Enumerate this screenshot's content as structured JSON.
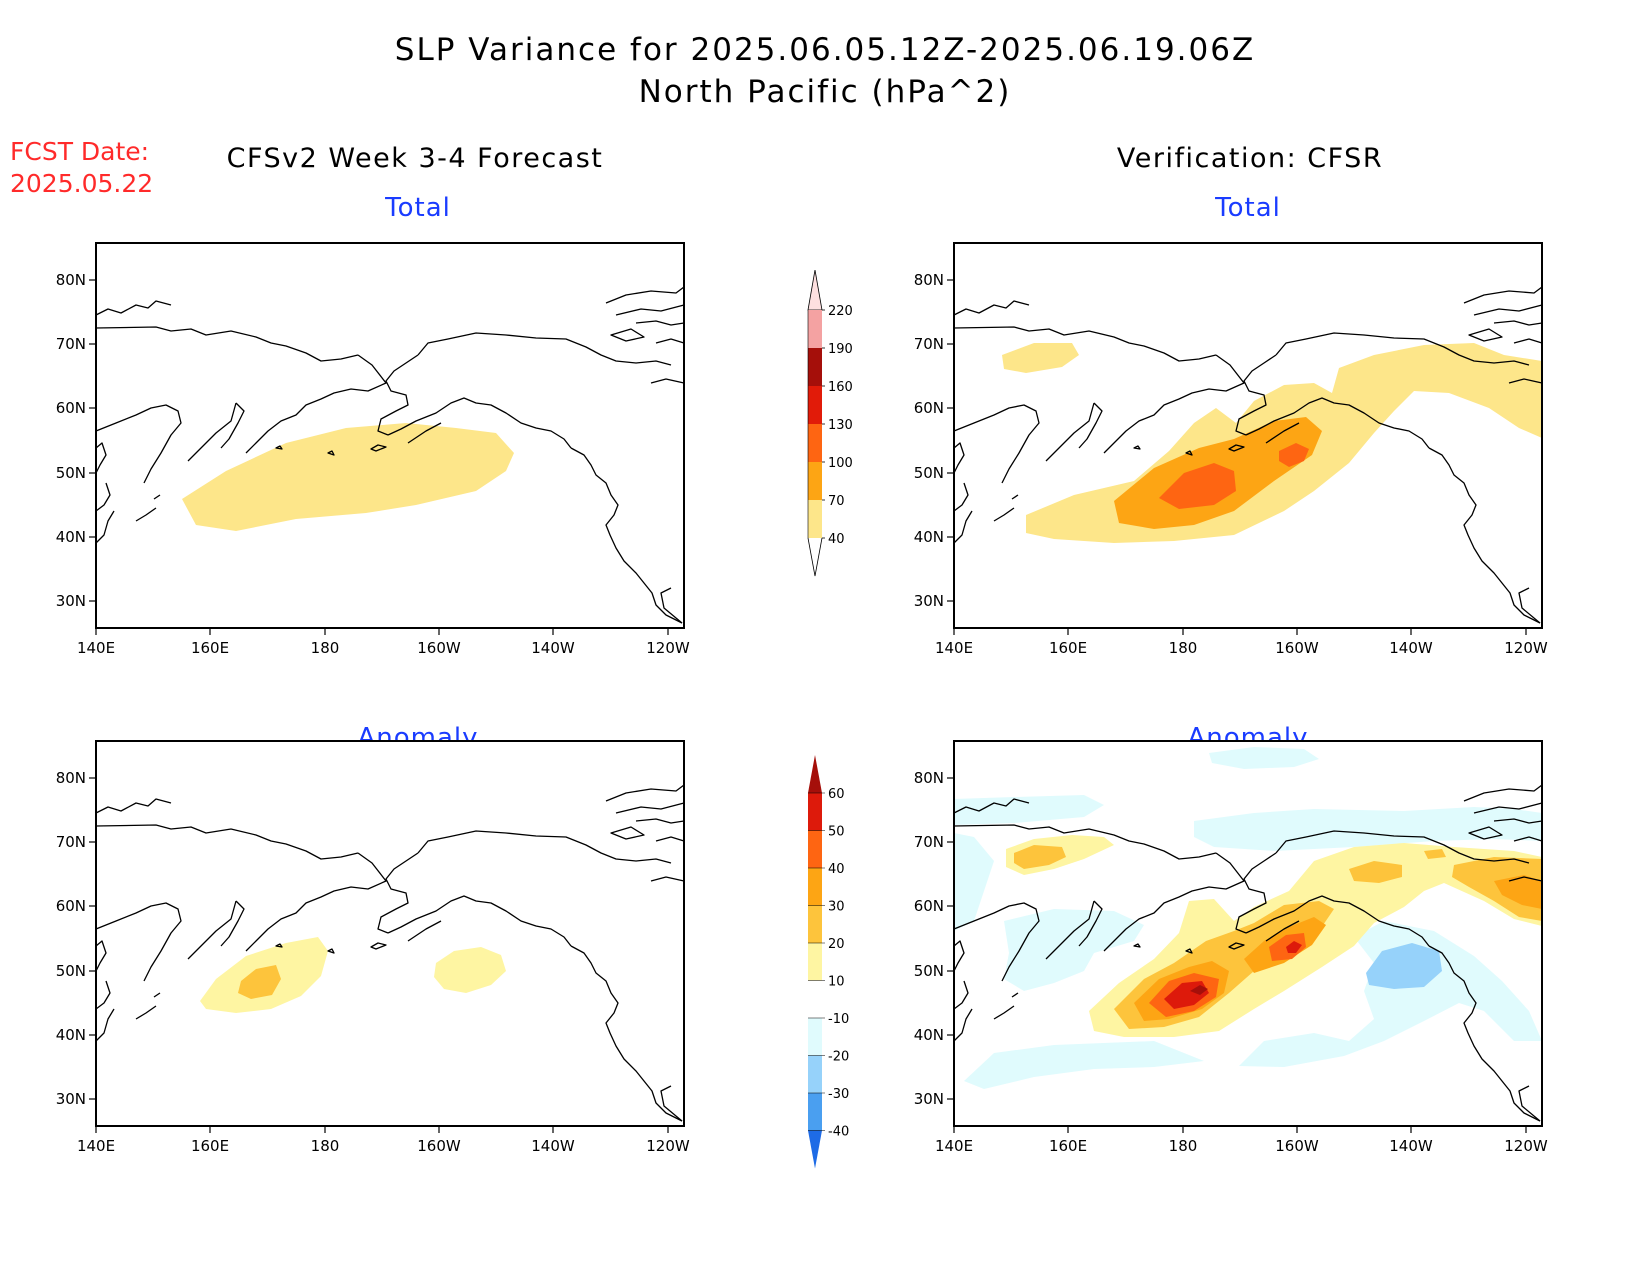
{
  "header": {
    "title_line1": "SLP Variance for 2025.06.05.12Z-2025.06.19.06Z",
    "title_line2": "North Pacific (hPa^2)",
    "fcst_label": "FCST Date:",
    "fcst_date": "2025.05.22",
    "left_column": "CFSv2 Week 3-4 Forecast",
    "right_column": "Verification: CFSR"
  },
  "panels": {
    "forecast_total": {
      "title": "Total"
    },
    "verif_total": {
      "title": "Total"
    },
    "forecast_anomaly": {
      "title": "Anomaly"
    },
    "verif_anomaly": {
      "title": "Anomaly"
    }
  },
  "axes": {
    "lon_labels": [
      "140E",
      "160E",
      "180",
      "160W",
      "140W",
      "120W"
    ],
    "lat_labels": [
      "80N",
      "70N",
      "60N",
      "50N",
      "40N",
      "30N"
    ]
  },
  "colorbars": {
    "total": {
      "levels": [
        "40",
        "70",
        "100",
        "130",
        "160",
        "190",
        "220"
      ],
      "colors": [
        "#fde68a",
        "#fda514",
        "#fe6512",
        "#e11b09",
        "#a50f0a",
        "#f4a2a2",
        "#fde0e0"
      ]
    },
    "anomaly": {
      "levels": [
        "60",
        "50",
        "40",
        "30",
        "20",
        "10",
        "-10",
        "-20",
        "-30",
        "-40"
      ],
      "colors": [
        "#a50f0a",
        "#dd1a0b",
        "#fe6512",
        "#fda514",
        "#fdc43c",
        "#fef5a2",
        "#ffffff",
        "#e0fbfd",
        "#96d2fa",
        "#4a9ff0",
        "#1e6be6"
      ]
    }
  }
}
